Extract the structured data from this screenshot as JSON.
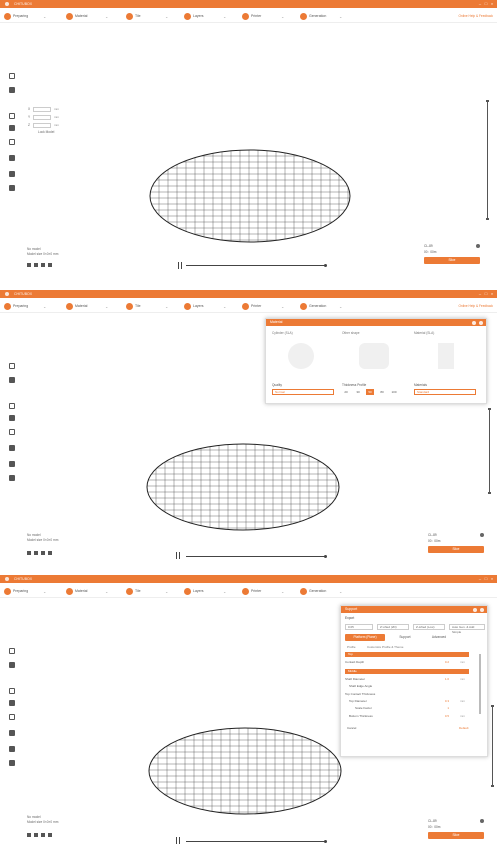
{
  "titlebar": {
    "title": "CHITUBOX",
    "min": "–",
    "max": "□",
    "close": "×"
  },
  "toolbar": {
    "steps": [
      {
        "label": "Preparing",
        "chev": "⌄"
      },
      {
        "label": "Material",
        "chev": "⌄"
      },
      {
        "label": "Tile",
        "chev": "⌄"
      },
      {
        "label": "Layers",
        "chev": "⌄"
      },
      {
        "label": "Printer",
        "chev": "⌄"
      },
      {
        "label": "Generation",
        "chev": "⌄"
      }
    ],
    "help_link": "Online Help & Feedback"
  },
  "move_panel": {
    "rows": [
      {
        "axis": "X",
        "unit": "mm"
      },
      {
        "axis": "Y",
        "unit": "mm"
      },
      {
        "axis": "Z",
        "unit": "mm"
      }
    ],
    "lock_label": "Lock Model"
  },
  "model_info": {
    "line1": "No model",
    "line2": "Model size 0×0×0 mm"
  },
  "slice_box": {
    "printer": "CL-89",
    "time": "00 : 00m",
    "slice_label": "Slice"
  },
  "material_dialog": {
    "title": "Material",
    "col1": "Cylinder (SLA)",
    "col2": "Other shape",
    "col3": "Material (SLA)",
    "sel1_label": "Quality",
    "sel1_value": "Normal",
    "sel2_label": "Thickness Profile",
    "pills": [
      "20",
      "30",
      "50",
      "80",
      "100"
    ],
    "sel3_label": "Materials",
    "sel3_value": "Standard"
  },
  "support_dialog": {
    "title": "Support",
    "sub_label": "Export",
    "fields": [
      "0.05",
      "Z Lifted (2D)",
      "Z-Lifted (Low)",
      "Auto Gen. & Add Simple"
    ],
    "tabs": [
      "Platform (Plane)",
      "Support",
      "Advanced"
    ],
    "link1": "Profile",
    "link2": "Customize Profile & Theme",
    "sections": [
      {
        "title": "Top",
        "rows": [
          {
            "label": "Contact Depth",
            "val": "0.2",
            "unit": "mm"
          }
        ]
      },
      {
        "title": "Middle",
        "rows": [
          {
            "label": "Shaft Diameter",
            "val": "1.0",
            "unit": "mm"
          },
          {
            "label": "Shaft Edge Angle",
            "val": "",
            "unit": ""
          },
          {
            "label": "Top Contact Thickness",
            "val": "",
            "unit": ""
          },
          {
            "label": "Top Diameter",
            "val": "0.3",
            "unit": "mm"
          },
          {
            "label": "Scale Factor",
            "val": "1",
            "unit": ""
          },
          {
            "label": "Bottom Thickness",
            "val": "0.5",
            "unit": "mm"
          }
        ]
      }
    ],
    "footer_left": "Cancel",
    "footer_right": "Default"
  },
  "colors": {
    "accent": "#ec7a35",
    "grid": "#444444"
  },
  "icons": [
    "open-file-icon",
    "print-icon",
    "move-icon",
    "rotate-icon",
    "scale-icon",
    "mirror-icon",
    "support-icon",
    "hollow-icon",
    "slice-icon"
  ]
}
